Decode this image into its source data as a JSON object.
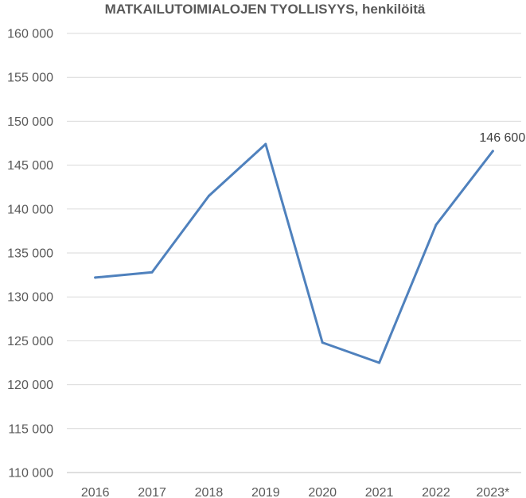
{
  "chart_data": {
    "type": "line",
    "title": "MATKAILUTOIMIALOJEN TYOLLISYYS, henkilöitä",
    "xlabel": "",
    "ylabel": "",
    "categories": [
      "2016",
      "2017",
      "2018",
      "2019",
      "2020",
      "2021",
      "2022",
      "2023*"
    ],
    "series": [
      {
        "values": [
          132200,
          132800,
          141500,
          147400,
          124800,
          122500,
          138200,
          146600
        ],
        "color": "#4f81bd"
      }
    ],
    "ylim": [
      110000,
      160000
    ],
    "yticks": [
      "110 000",
      "115 000",
      "120 000",
      "125 000",
      "130 000",
      "135 000",
      "140 000",
      "145 000",
      "150 000",
      "155 000",
      "160 000"
    ],
    "data_labels": [
      {
        "index": 7,
        "text": "146 600"
      }
    ],
    "grid": true,
    "legend": "none"
  }
}
